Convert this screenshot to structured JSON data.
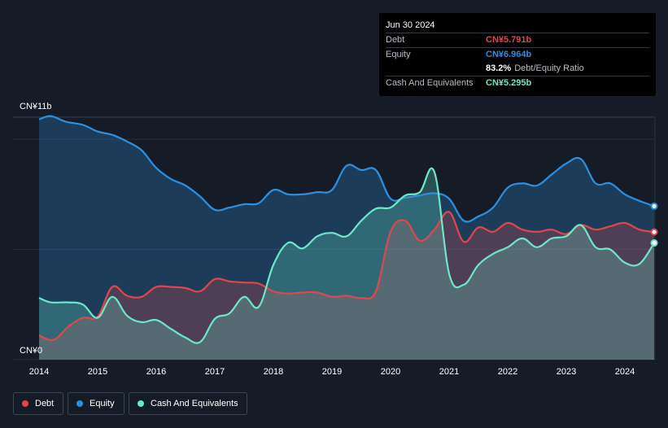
{
  "tooltip": {
    "date": "Jun 30 2024",
    "debt_label": "Debt",
    "debt_value": "CN¥5.791b",
    "equity_label": "Equity",
    "equity_value": "CN¥6.964b",
    "ratio_value": "83.2%",
    "ratio_label": "Debt/Equity Ratio",
    "cash_label": "Cash And Equivalents",
    "cash_value": "CN¥5.295b"
  },
  "colors": {
    "debt": "#e0474c",
    "equity": "#2e8fe0",
    "cash": "#6ee6c8",
    "background": "#151c28"
  },
  "legend": {
    "debt": "Debt",
    "equity": "Equity",
    "cash": "Cash And Equivalents"
  },
  "chart_data": {
    "type": "area",
    "title": "",
    "xlabel": "",
    "ylabel": "",
    "y_min_label": "CN¥0",
    "y_max_label": "CN¥11b",
    "ylim": [
      0,
      11
    ],
    "xlim": [
      2014.0,
      2024.5
    ],
    "x_ticks": [
      "2014",
      "2015",
      "2016",
      "2017",
      "2018",
      "2019",
      "2020",
      "2021",
      "2022",
      "2023",
      "2024"
    ],
    "grid": true,
    "legend_position": "bottom-left",
    "series": [
      {
        "name": "Equity",
        "color_key": "equity",
        "x": [
          2014.0,
          2014.2,
          2014.45,
          2014.75,
          2015.0,
          2015.25,
          2015.5,
          2015.75,
          2016.0,
          2016.25,
          2016.5,
          2016.75,
          2017.0,
          2017.25,
          2017.5,
          2017.75,
          2018.0,
          2018.25,
          2018.5,
          2018.75,
          2019.0,
          2019.25,
          2019.5,
          2019.75,
          2020.0,
          2020.25,
          2020.5,
          2020.75,
          2021.0,
          2021.25,
          2021.5,
          2021.75,
          2022.0,
          2022.25,
          2022.5,
          2022.75,
          2023.0,
          2023.25,
          2023.5,
          2023.75,
          2024.0,
          2024.25,
          2024.5
        ],
        "values": [
          10.9,
          11.05,
          10.8,
          10.65,
          10.35,
          10.2,
          9.9,
          9.5,
          8.7,
          8.2,
          7.9,
          7.4,
          6.8,
          6.9,
          7.05,
          7.1,
          7.7,
          7.5,
          7.5,
          7.6,
          7.7,
          8.8,
          8.6,
          8.6,
          7.3,
          7.35,
          7.45,
          7.55,
          7.3,
          6.3,
          6.5,
          6.9,
          7.8,
          8.0,
          7.9,
          8.4,
          8.9,
          9.1,
          8.0,
          8.0,
          7.5,
          7.2,
          6.964
        ]
      },
      {
        "name": "Debt",
        "color_key": "debt",
        "x": [
          2014.0,
          2014.25,
          2014.5,
          2014.75,
          2015.0,
          2015.25,
          2015.5,
          2015.75,
          2016.0,
          2016.25,
          2016.5,
          2016.75,
          2017.0,
          2017.25,
          2017.5,
          2017.75,
          2018.0,
          2018.25,
          2018.5,
          2018.75,
          2019.0,
          2019.25,
          2019.5,
          2019.75,
          2020.0,
          2020.25,
          2020.5,
          2020.75,
          2021.0,
          2021.25,
          2021.5,
          2021.75,
          2022.0,
          2022.25,
          2022.5,
          2022.75,
          2023.0,
          2023.25,
          2023.5,
          2023.75,
          2024.0,
          2024.25,
          2024.5
        ],
        "values": [
          1.1,
          0.9,
          1.5,
          1.9,
          1.95,
          3.3,
          2.9,
          2.85,
          3.3,
          3.3,
          3.25,
          3.1,
          3.65,
          3.55,
          3.5,
          3.45,
          3.1,
          3.0,
          3.05,
          3.05,
          2.85,
          2.9,
          2.8,
          3.1,
          5.8,
          6.3,
          5.4,
          5.9,
          6.7,
          5.35,
          6.0,
          5.8,
          6.2,
          5.9,
          5.8,
          5.9,
          5.7,
          6.1,
          5.9,
          6.05,
          6.2,
          5.9,
          5.791
        ]
      },
      {
        "name": "Cash And Equivalents",
        "color_key": "cash",
        "x": [
          2014.0,
          2014.2,
          2014.5,
          2014.75,
          2015.0,
          2015.25,
          2015.5,
          2015.75,
          2016.0,
          2016.25,
          2016.5,
          2016.75,
          2017.0,
          2017.25,
          2017.5,
          2017.75,
          2018.0,
          2018.25,
          2018.5,
          2018.75,
          2019.0,
          2019.25,
          2019.5,
          2019.75,
          2020.0,
          2020.25,
          2020.5,
          2020.75,
          2021.0,
          2021.25,
          2021.5,
          2021.75,
          2022.0,
          2022.25,
          2022.5,
          2022.75,
          2023.0,
          2023.25,
          2023.5,
          2023.75,
          2024.0,
          2024.25,
          2024.5
        ],
        "values": [
          2.8,
          2.6,
          2.6,
          2.5,
          1.9,
          2.85,
          2.0,
          1.7,
          1.8,
          1.4,
          1.0,
          0.8,
          1.85,
          2.1,
          2.85,
          2.4,
          4.3,
          5.3,
          5.05,
          5.6,
          5.75,
          5.6,
          6.3,
          6.85,
          6.9,
          7.45,
          7.6,
          8.5,
          3.9,
          3.4,
          4.3,
          4.8,
          5.1,
          5.5,
          5.1,
          5.5,
          5.6,
          6.1,
          5.1,
          5.0,
          4.4,
          4.35,
          5.295
        ]
      }
    ]
  }
}
